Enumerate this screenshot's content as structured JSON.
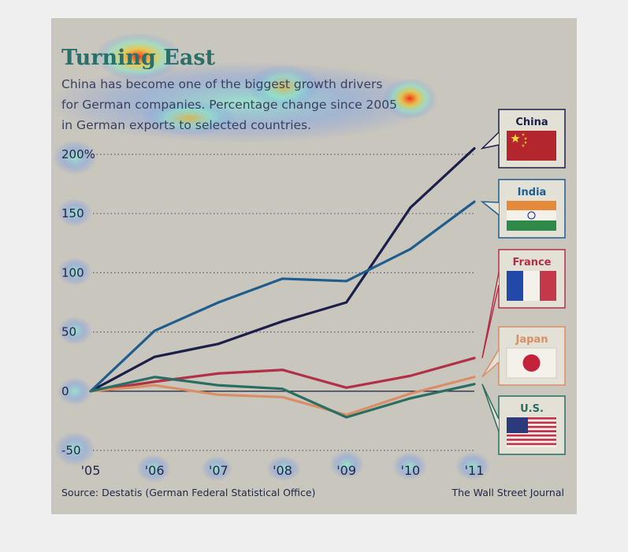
{
  "chart_data": {
    "type": "line",
    "title": "Turning East",
    "subtitle_lines": [
      "China has become one of the biggest growth drivers",
      "for German companies. Percentage change since 2005",
      "in German exports to selected countries."
    ],
    "x": [
      "'05",
      "'06",
      "'07",
      "'08",
      "'09",
      "'10",
      "'11"
    ],
    "ylim": [
      -50,
      200
    ],
    "yticks": [
      -50,
      0,
      50,
      100,
      150,
      200
    ],
    "ytick_labels": [
      "-50",
      "0",
      "50",
      "100",
      "150",
      "200%"
    ],
    "grid": "dotted horizontal",
    "legend_placement": "right",
    "series": [
      {
        "name": "China",
        "color": "#1b1f4a",
        "values": [
          0,
          29,
          40,
          59,
          75,
          155,
          205
        ],
        "flag": "china-flag-icon"
      },
      {
        "name": "India",
        "color": "#1f5d8e",
        "values": [
          0,
          51,
          75,
          95,
          93,
          120,
          160
        ],
        "flag": "india-flag-icon"
      },
      {
        "name": "France",
        "color": "#b13046",
        "values": [
          0,
          8,
          15,
          18,
          3,
          13,
          28
        ],
        "flag": "france-flag-icon"
      },
      {
        "name": "Japan",
        "color": "#d98e66",
        "values": [
          0,
          5,
          -3,
          -5,
          -20,
          -2,
          12
        ],
        "flag": "japan-flag-icon"
      },
      {
        "name": "U.S.",
        "color": "#2a6e62",
        "values": [
          0,
          12,
          5,
          2,
          -22,
          -6,
          6
        ],
        "flag": "us-flag-icon"
      }
    ],
    "source": "Source: Destatis (German Federal Statistical Office)",
    "credit": "The Wall Street Journal"
  },
  "colors": {
    "panel_bg": "#c9c6bd",
    "page_bg": "#efefef",
    "grid": "#5a5f70",
    "zero_line": "#2a2d44"
  }
}
